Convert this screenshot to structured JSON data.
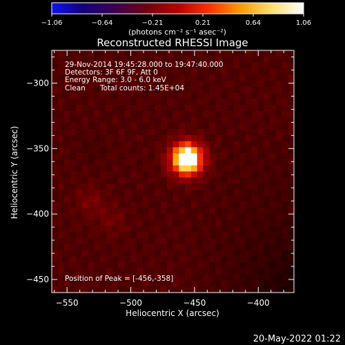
{
  "colorbar": {
    "ticks": [
      "−1.06",
      "−0.64",
      "−0.21",
      "0.21",
      "0.64",
      "1.06"
    ],
    "units": "(photons cm⁻² s⁻¹ asec⁻²)",
    "range": [
      -1.06,
      1.06
    ],
    "stops": [
      "#1010ff",
      "#140078",
      "#3a0050",
      "#700010",
      "#b80000",
      "#ff3000",
      "#ff9a00",
      "#ffe070",
      "#ffffff"
    ]
  },
  "chart_data": {
    "type": "heatmap",
    "title": "Reconstructed RHESSI Image",
    "xlabel": "Heliocentric X (arcsec)",
    "ylabel": "Heliocentric Y (arcsec)",
    "xlim": [
      -562,
      -372
    ],
    "ylim": [
      -460,
      -275
    ],
    "x_ticks": [
      -550,
      -500,
      -450,
      -400
    ],
    "y_ticks": [
      -300,
      -350,
      -400,
      -450
    ],
    "x_tick_labels": [
      "−550",
      "−500",
      "−450",
      "−400"
    ],
    "y_tick_labels": [
      "−300",
      "−350",
      "−400",
      "−450"
    ],
    "peak": {
      "x": -456,
      "y": -358,
      "value": 1.06
    },
    "secondary_sources": [
      {
        "x": -532,
        "y": -390,
        "value": 0.38
      },
      {
        "x": -515,
        "y": -405,
        "value": 0.36
      },
      {
        "x": -530,
        "y": -350,
        "value": 0.22
      }
    ],
    "annotations": {
      "time_range": "29-Nov-2014 19:45:28.000 to 19:47:40.000",
      "detectors": "Detectors: 3F 6F 9F, Att 0",
      "energy_range": "Energy Range: 3.0 - 6.0 keV",
      "method": "Clean",
      "total_counts": "Total counts: 1.45E+04",
      "peak_position": "Position of Peak = [-456,-358]"
    }
  },
  "footer": {
    "date": "20-May-2022 01:22"
  }
}
